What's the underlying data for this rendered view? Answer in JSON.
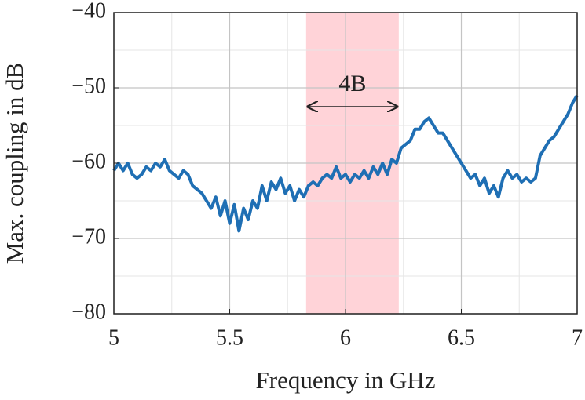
{
  "chart_data": {
    "type": "line",
    "xlabel": "Frequency in GHz",
    "ylabel": "Max. coupling in dB",
    "xlim": [
      5,
      7
    ],
    "ylim": [
      -80,
      -40
    ],
    "xticks": [
      5,
      5.5,
      6,
      6.5,
      7
    ],
    "yticks": [
      {
        "value": -80,
        "label": "−80"
      },
      {
        "value": -70,
        "label": "−70"
      },
      {
        "value": -60,
        "label": "−60"
      },
      {
        "value": -50,
        "label": "−50"
      },
      {
        "value": -40,
        "label": "−40"
      }
    ],
    "xminor": [
      5.25,
      5.75,
      6.25,
      6.75
    ],
    "yminor": [
      -75,
      -65,
      -55,
      -45
    ],
    "grid": true,
    "highlight": {
      "range": [
        5.83,
        6.23
      ],
      "color": "#ffd3d8",
      "label": "4B"
    },
    "x": [
      5.0,
      5.02,
      5.04,
      5.06,
      5.08,
      5.1,
      5.12,
      5.14,
      5.16,
      5.18,
      5.2,
      5.22,
      5.24,
      5.26,
      5.28,
      5.3,
      5.32,
      5.34,
      5.36,
      5.38,
      5.4,
      5.42,
      5.44,
      5.46,
      5.48,
      5.5,
      5.52,
      5.54,
      5.56,
      5.58,
      5.6,
      5.62,
      5.64,
      5.66,
      5.68,
      5.7,
      5.72,
      5.74,
      5.76,
      5.78,
      5.8,
      5.82,
      5.84,
      5.86,
      5.88,
      5.9,
      5.92,
      5.94,
      5.96,
      5.98,
      6.0,
      6.02,
      6.04,
      6.06,
      6.08,
      6.1,
      6.12,
      6.14,
      6.16,
      6.18,
      6.2,
      6.22,
      6.24,
      6.26,
      6.28,
      6.3,
      6.32,
      6.34,
      6.36,
      6.38,
      6.4,
      6.42,
      6.44,
      6.46,
      6.48,
      6.5,
      6.52,
      6.54,
      6.56,
      6.58,
      6.6,
      6.62,
      6.64,
      6.66,
      6.68,
      6.7,
      6.72,
      6.74,
      6.76,
      6.78,
      6.8,
      6.82,
      6.84,
      6.86,
      6.88,
      6.9,
      6.92,
      6.94,
      6.96,
      6.98,
      7.0
    ],
    "series": [
      {
        "color": "#1f6fb4",
        "values": [
          -61,
          -60,
          -61,
          -60,
          -61.5,
          -62,
          -61.5,
          -60.5,
          -61,
          -60,
          -60.5,
          -59.5,
          -61,
          -61.5,
          -62,
          -61,
          -61.5,
          -63,
          -63.5,
          -64,
          -65,
          -66,
          -64.5,
          -67,
          -65,
          -68,
          -65.5,
          -69,
          -66,
          -67.5,
          -65,
          -66,
          -63,
          -65,
          -62.5,
          -63.5,
          -62,
          -64,
          -63,
          -65,
          -63.5,
          -64.5,
          -63,
          -62.5,
          -63,
          -62,
          -61.5,
          -62,
          -60.5,
          -62,
          -61.5,
          -62.5,
          -61.5,
          -62,
          -61,
          -62,
          -60.5,
          -61.5,
          -60,
          -61.5,
          -59.5,
          -60,
          -58,
          -57.5,
          -57,
          -55.5,
          -55.5,
          -54.5,
          -54,
          -55,
          -56,
          -56,
          -57,
          -58,
          -59,
          -60,
          -61,
          -62,
          -61.5,
          -63,
          -62,
          -64,
          -63,
          -64.5,
          -62,
          -61,
          -62,
          -61.5,
          -62.5,
          -62,
          -62.5,
          -62,
          -59,
          -58,
          -57,
          -56.5,
          -55.5,
          -54.5,
          -53.5,
          -52,
          -51
        ]
      }
    ]
  }
}
